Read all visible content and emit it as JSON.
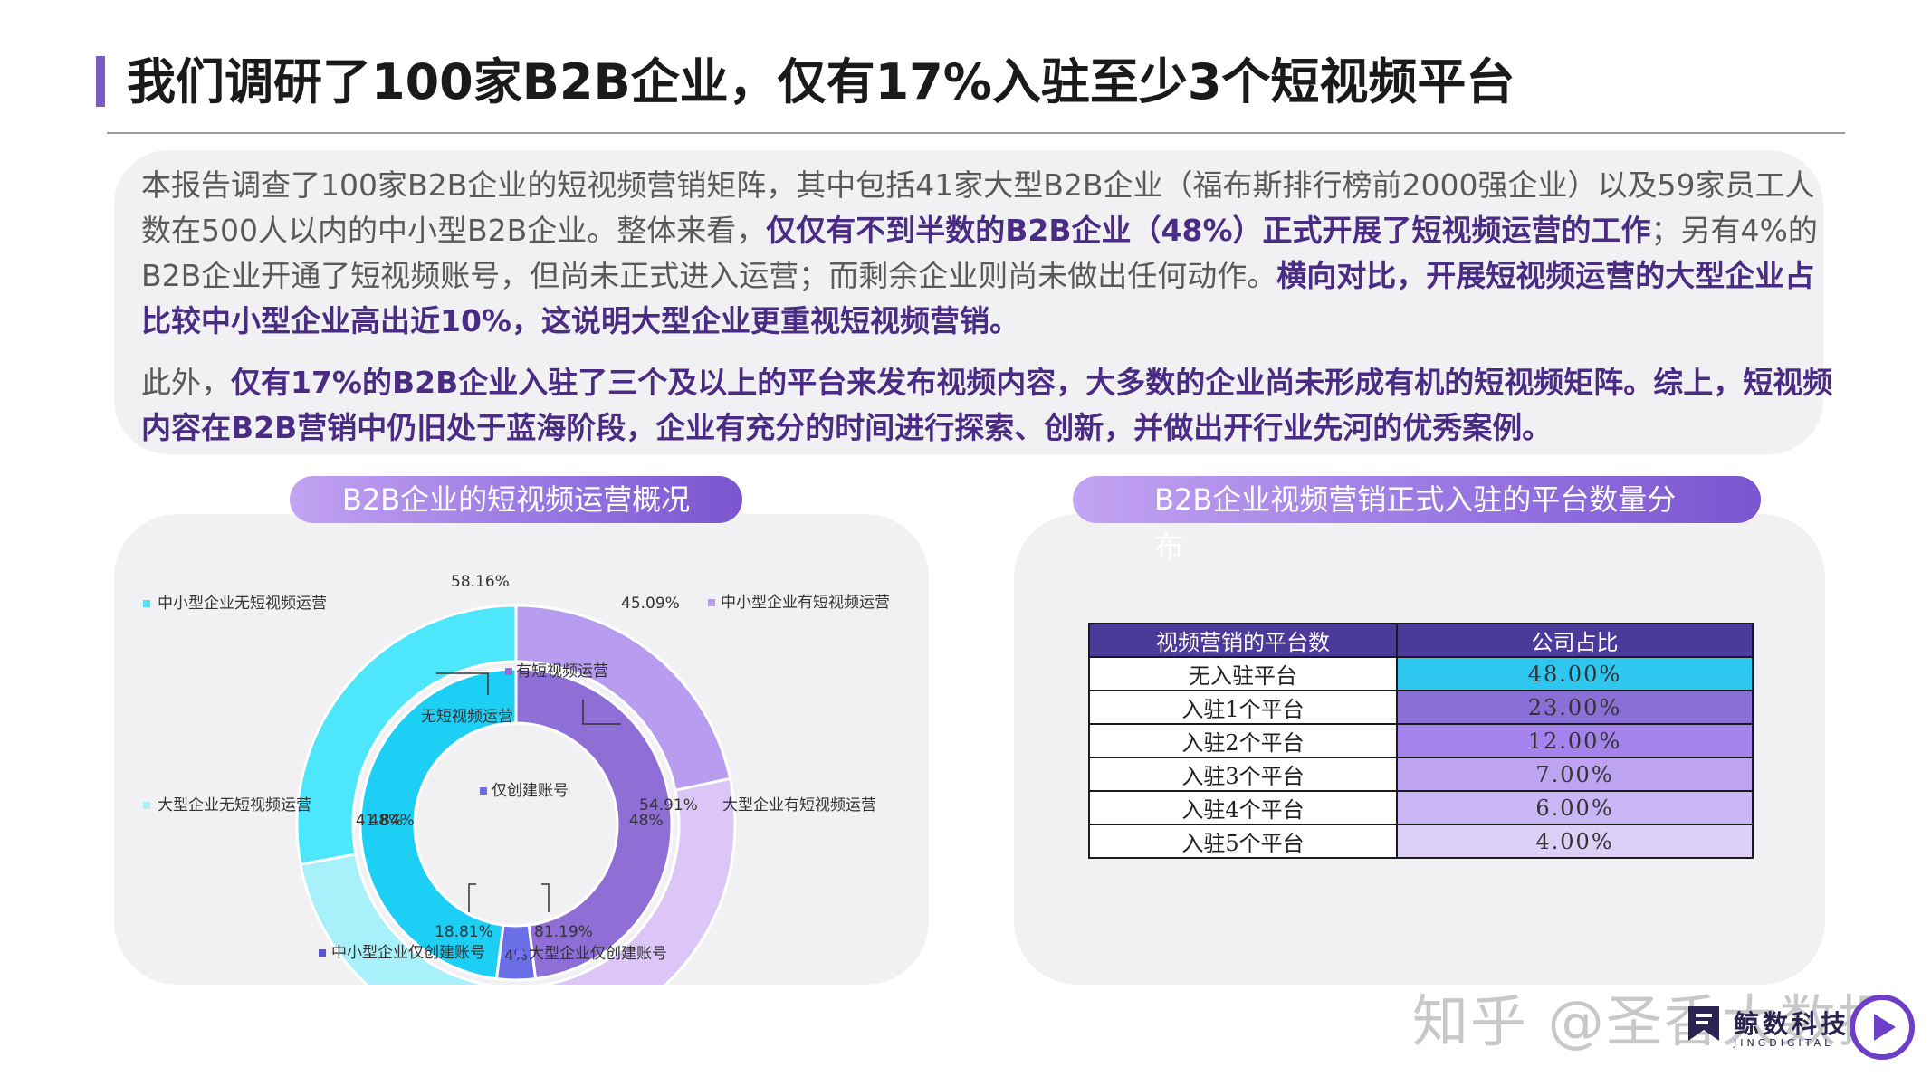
{
  "page": {
    "title": "我们调研了100家B2B企业，仅有17%入驻至少3个短视频平台"
  },
  "intro": {
    "p1_a": "本报告调查了100家B2B企业的短视频营销矩阵，其中包括41家大型B2B企业（福布斯排行榜前2000强企业）以及59家员工人数在500人以内的中小型B2B企业。整体来看，",
    "p1_b": "仅仅有不到半数的B2B企业（48%）正式开展了短视频运营的工作",
    "p1_c": "；另有4%的B2B企业开通了短视频账号，但尚未正式进入运营；而剩余企业则尚未做出任何动作。",
    "p1_d": "横向对比，开展短视频运营的大型企业占比较中小型企业高出近10%，这说明大型企业更重视短视频营销。",
    "p2_a": "此外，",
    "p2_b": "仅有17%的B2B企业入驻了三个及以上的平台来发布视频内容，大多数的企业尚未形成有机的短视频矩阵。综上，短视频内容在B2B营销中仍旧处于蓝海阶段，企业有充分的时间进行探索、创新，并做出开行业先河的优秀案例。"
  },
  "left_chart": {
    "pill_title": "B2B企业的短视频运营概况"
  },
  "right_chart": {
    "pill_title": "B2B企业视频营销正式入驻的平台数量分布"
  },
  "chart_data": [
    {
      "type": "pie",
      "title": "B2B企业的短视频运营概况",
      "inner_ring": {
        "labels": [
          "有短视频运营",
          "无短视频运营",
          "仅创建账号"
        ],
        "values": [
          48,
          48,
          4
        ],
        "value_labels": [
          "48%",
          "48%",
          "4%"
        ],
        "colors": [
          "#8f6fd6",
          "#1ecff5",
          "#6a6fe8"
        ]
      },
      "outer_ring": {
        "labels": [
          "中小型企业有短视频运营",
          "大型企业有短视频运营",
          "大型企业仅创建账号",
          "中小型企业仅创建账号",
          "大型企业无短视频运营",
          "中小型企业无短视频运营"
        ],
        "values": [
          45.09,
          54.91,
          81.19,
          18.81,
          41.84,
          58.16
        ],
        "value_labels": [
          "45.09%",
          "54.91%",
          "81.19%",
          "18.81%",
          "41.84%",
          "58.16%"
        ],
        "colors": [
          "#b79cf0",
          "#dcc6f8",
          "#7d75ee",
          "#5a55d8",
          "#a8f1fb",
          "#4de6fb"
        ]
      }
    },
    {
      "type": "table",
      "title": "B2B企业视频营销正式入驻的平台数量分布",
      "columns": [
        "视频营销的平台数",
        "公司占比"
      ],
      "rows": [
        {
          "label": "无入驻平台",
          "value": "48.00%",
          "color": "#2ec7f0"
        },
        {
          "label": "入驻1个平台",
          "value": "23.00%",
          "color": "#8a6fd6"
        },
        {
          "label": "入驻2个平台",
          "value": "12.00%",
          "color": "#a583ec"
        },
        {
          "label": "入驻3个平台",
          "value": "7.00%",
          "color": "#bda3f1"
        },
        {
          "label": "入驻4个平台",
          "value": "6.00%",
          "color": "#c9b6f4"
        },
        {
          "label": "入驻5个平台",
          "value": "4.00%",
          "color": "#dcd0f8"
        }
      ]
    }
  ],
  "watermark": {
    "text": "知乎 @圣香大数据"
  },
  "logo": {
    "name": "鲸数科技",
    "sub": "JINGDIGITAL"
  },
  "colors": {
    "accent": "#7b5cc4",
    "highlight_text": "#4b2c84",
    "table_header": "#4b3a9a"
  }
}
